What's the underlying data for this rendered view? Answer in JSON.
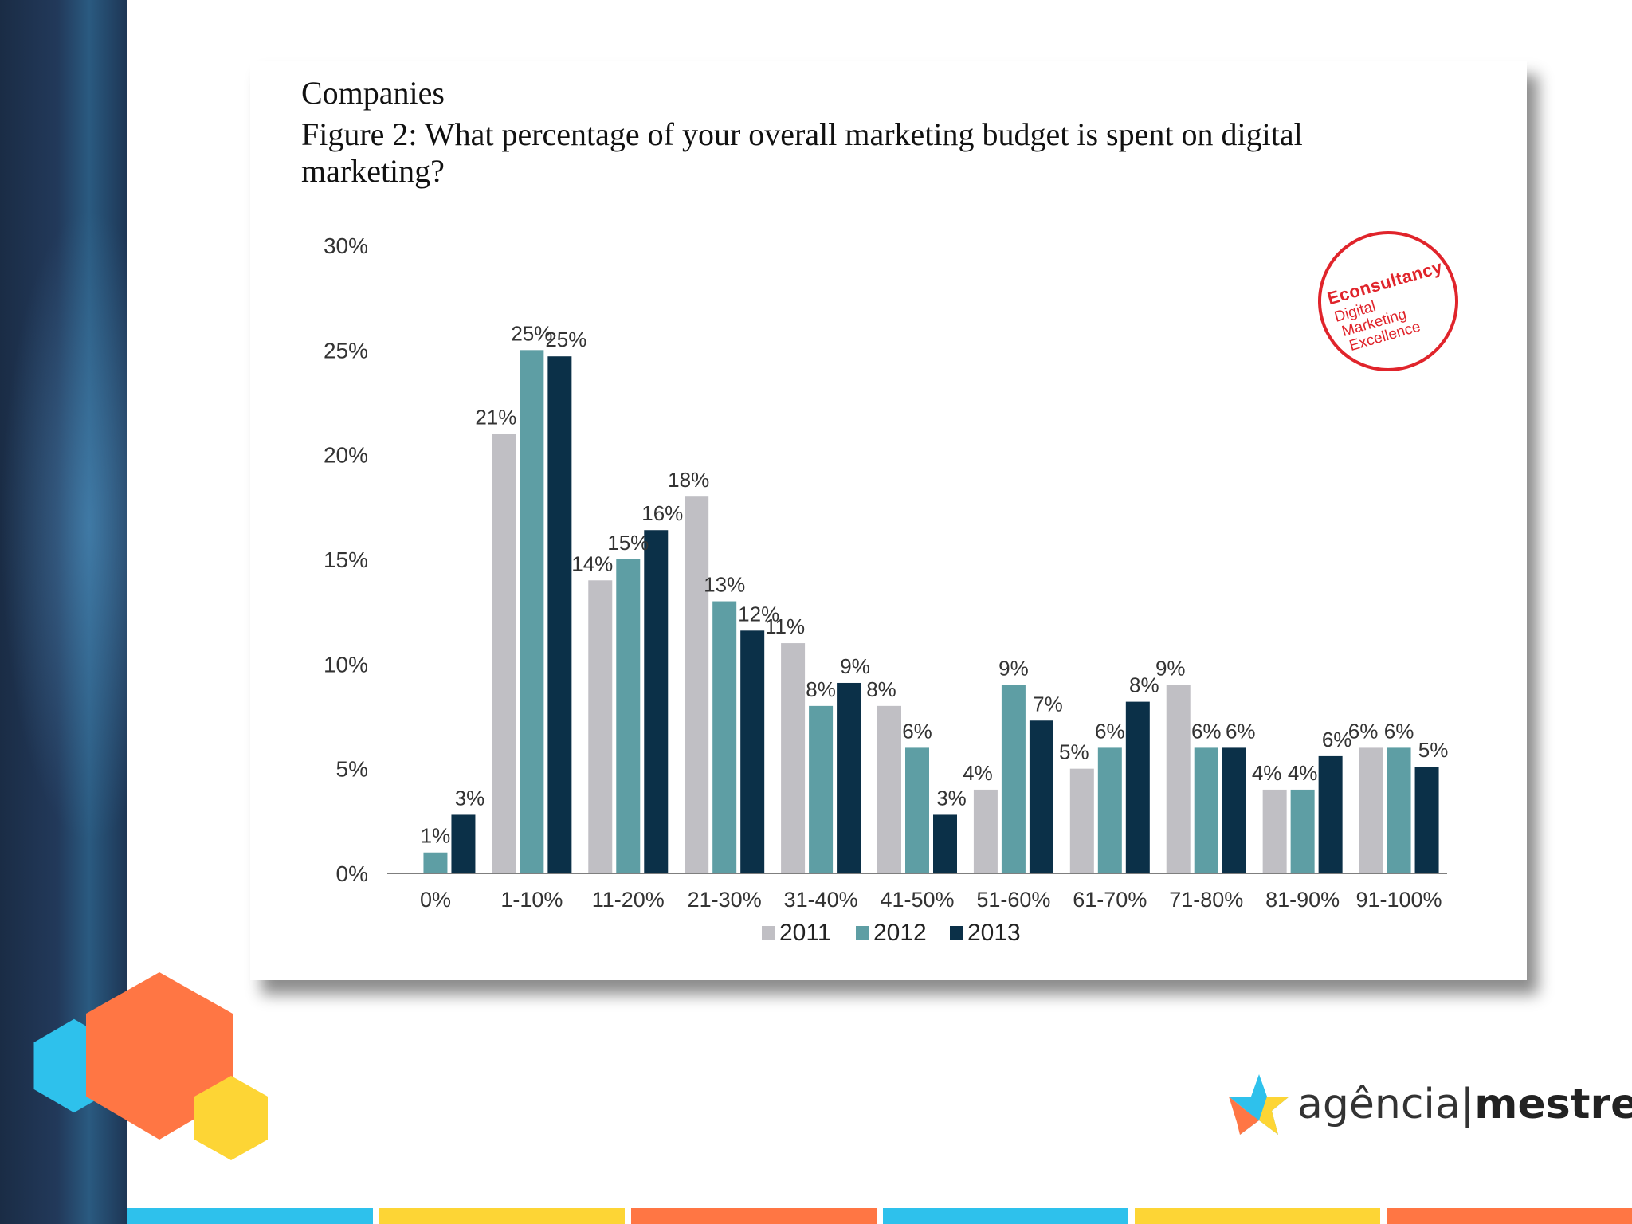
{
  "header": {
    "company_label": "Companies",
    "figure_title": "Figure 2: What percentage of your overall marketing budget is spent on digital marketing?"
  },
  "stamp": {
    "brand": "Econsultancy",
    "line1": "Digital",
    "line2": "Marketing",
    "line3": "Excellence"
  },
  "logo": {
    "part1": "agência",
    "separator": "|",
    "part2": "mestre"
  },
  "colors": {
    "series_2011": "#c0bfc4",
    "series_2012": "#5e9ea4",
    "series_2013": "#0b3048",
    "stamp_red": "#e0242b",
    "strip_colors": [
      "#2ec1ec",
      "#fdd535",
      "#ff7644",
      "#2ec1ec",
      "#fdd535",
      "#ff7644"
    ]
  },
  "chart_data": {
    "type": "bar",
    "title": "Figure 2: What percentage of your overall marketing budget is spent on digital marketing?",
    "xlabel": "",
    "ylabel": "",
    "ylim": [
      0,
      30
    ],
    "yticks": [
      0,
      5,
      10,
      15,
      20,
      25,
      30
    ],
    "ytick_labels": [
      "0%",
      "5%",
      "10%",
      "15%",
      "20%",
      "25%",
      "30%"
    ],
    "legend_position": "bottom",
    "categories": [
      "0%",
      "1-10%",
      "11-20%",
      "21-30%",
      "31-40%",
      "41-50%",
      "51-60%",
      "61-70%",
      "71-80%",
      "81-90%",
      "91-100%"
    ],
    "series": [
      {
        "name": "2011",
        "values": [
          0,
          21,
          14,
          18,
          11,
          8,
          4,
          5,
          9,
          4,
          6
        ],
        "labels": [
          "",
          "21%",
          "14%",
          "18%",
          "11%",
          "8%",
          "4%",
          "5%",
          "9%",
          "4%",
          "6%"
        ]
      },
      {
        "name": "2012",
        "values": [
          1,
          25,
          15,
          13,
          8,
          6,
          9,
          6,
          6,
          4,
          6
        ],
        "labels": [
          "1%",
          "25%",
          "15%",
          "13%",
          "8%",
          "6%",
          "9%",
          "6%",
          "6%",
          "4%",
          "6%"
        ]
      },
      {
        "name": "2013",
        "values": [
          2.8,
          24.7,
          16.4,
          11.6,
          9.1,
          2.8,
          7.3,
          8.2,
          6,
          5.6,
          5.1
        ],
        "labels": [
          "3%",
          "25%",
          "16%",
          "12%",
          "9%",
          "3%",
          "7%",
          "8%",
          "6%",
          "6%",
          "5%"
        ]
      }
    ]
  }
}
